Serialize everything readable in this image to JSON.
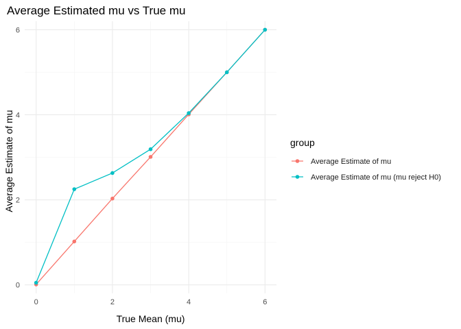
{
  "chart_data": {
    "type": "line",
    "title": "Average Estimated mu vs True mu",
    "xlabel": "True Mean (mu)",
    "ylabel": "Average Estimate of mu",
    "x": [
      0,
      1,
      2,
      3,
      4,
      5,
      6
    ],
    "xticks": [
      0,
      2,
      4,
      6
    ],
    "yticks": [
      0,
      2,
      4,
      6
    ],
    "xlim": [
      -0.3,
      6.3
    ],
    "ylim": [
      -0.2,
      6.2
    ],
    "grid": true,
    "legend_title": "group",
    "legend_position": "right",
    "series": [
      {
        "name": "Average Estimate of mu",
        "color": "#F8766D",
        "values": [
          0.01,
          1.02,
          2.03,
          3.01,
          4.01,
          5.0,
          6.0
        ]
      },
      {
        "name": "Average Estimate of mu (mu reject H0)",
        "color": "#00BFC4",
        "values": [
          0.05,
          2.25,
          2.63,
          3.19,
          4.04,
          5.0,
          6.0
        ]
      }
    ]
  }
}
